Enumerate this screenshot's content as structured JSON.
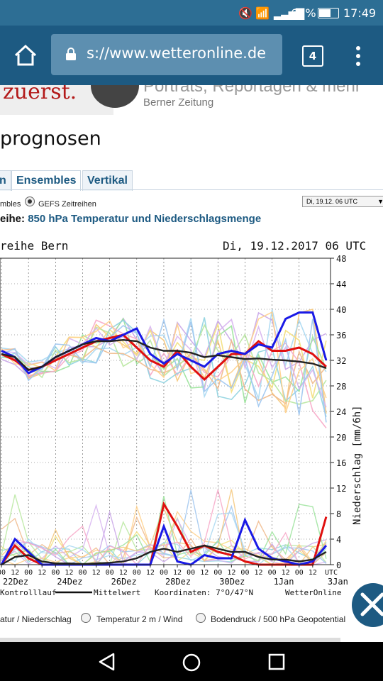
{
  "status": {
    "battery": "63%",
    "time": "17:49"
  },
  "browser": {
    "url": "s://www.wetteronline.de",
    "tab_count": "4"
  },
  "ad": {
    "left_text": "zuerst.",
    "right_text": "Portrats, Reportagen & mehr",
    "sub_text": "Berner Zeitung"
  },
  "page": {
    "headline": "prognosen"
  },
  "tabs": [
    {
      "label": "n"
    },
    {
      "label": "Ensembles"
    },
    {
      "label": "Vertikal"
    }
  ],
  "controls": {
    "radio_left_label": "mbles",
    "radio_gefs_label": "GEFS Zeitreihen",
    "date_select": "Di, 19.12. 06 UTC"
  },
  "chart_header": {
    "prefix": "eihe:",
    "text": "850 hPa Temperatur und Niederschlagsmenge"
  },
  "chart_data": {
    "type": "line",
    "title_left": "reihe Bern",
    "title_right": "Di, 19.12.2017 06 UTC",
    "right_axis_label": "Niederschlag [mm/6h]",
    "right_ticks": [
      "48",
      "44",
      "40",
      "36",
      "32",
      "28",
      "24",
      "20",
      "16",
      "12",
      "8",
      "4",
      "0"
    ],
    "right_unit": "UTC",
    "x_tick_labels": [
      "00",
      "12",
      "00",
      "12",
      "00",
      "12",
      "00",
      "12",
      "00",
      "12",
      "00",
      "12",
      "00",
      "12",
      "00",
      "12",
      "00",
      "12",
      "00",
      "12",
      "00",
      "12",
      "00",
      "12"
    ],
    "date_labels": [
      "22Dez",
      "24Dez",
      "26Dez",
      "28Dez",
      "30Dez",
      "1Jan",
      "3Jan"
    ],
    "legend": {
      "control": "Kontrolllauf",
      "mean": "Mittelwert",
      "coords": "Koordinaten: 7°O/47°N",
      "brand": "WetterOnline"
    },
    "ylim": [
      0,
      48
    ],
    "series": [
      {
        "name": "Kontrolllauf",
        "role": "temperature",
        "color": "#e01010",
        "values": [
          33,
          32,
          30.5,
          31,
          32,
          33,
          34,
          35,
          35.5,
          36,
          34,
          32,
          31,
          33.5,
          31,
          29,
          31,
          33,
          33,
          35,
          33.5,
          33.5,
          34,
          33,
          31
        ]
      },
      {
        "role": "temperature",
        "color": "#1a1ae6",
        "values": [
          33.5,
          32.5,
          30,
          31,
          32.5,
          33.5,
          34.5,
          35.5,
          35,
          36,
          37,
          33,
          31.5,
          33,
          32,
          31,
          33,
          33.5,
          33,
          34.5,
          34,
          38.5,
          39.5,
          39.5,
          32
        ]
      },
      {
        "name": "Mittelwert",
        "role": "temperature",
        "color": "#222222",
        "values": [
          33,
          32.5,
          30.5,
          31,
          32.5,
          33.5,
          34.5,
          35,
          35,
          35.2,
          35,
          34,
          33.5,
          33.5,
          33.2,
          32.5,
          32.8,
          32.5,
          32.2,
          32.3,
          32.1,
          32,
          31.8,
          31.5,
          30.8
        ]
      },
      {
        "name": "Kontrolllauf",
        "role": "precipitation",
        "color": "#e01010",
        "values": [
          0,
          3,
          1,
          0,
          0,
          0,
          0,
          0,
          0,
          0,
          0,
          0,
          9.5,
          6,
          2,
          3,
          2,
          1.5,
          0.5,
          0,
          0,
          0,
          0,
          0,
          7.5
        ]
      },
      {
        "role": "precipitation",
        "color": "#1a1ae6",
        "values": [
          0,
          4,
          2,
          0,
          0,
          0,
          0,
          0,
          0,
          0,
          0,
          0,
          6,
          0.5,
          0,
          1.5,
          1,
          1,
          7,
          2.5,
          1,
          0.5,
          0,
          0.5,
          3
        ]
      },
      {
        "name": "Mittelwert",
        "role": "precipitation",
        "color": "#222222",
        "values": [
          0,
          1.2,
          1.5,
          0.5,
          0.2,
          0.2,
          0.1,
          0.2,
          0.3,
          0.5,
          1,
          2,
          2.5,
          2,
          2.5,
          3,
          2.5,
          2,
          2,
          1.2,
          0.8,
          0.8,
          0.5,
          0.8,
          2
        ]
      }
    ]
  },
  "bottom_options": {
    "opt1": "atur / Niederschlag",
    "opt2": "Temperatur 2 m / Wind",
    "opt3": "Bodendruck / 500 hPa Geopotential"
  }
}
